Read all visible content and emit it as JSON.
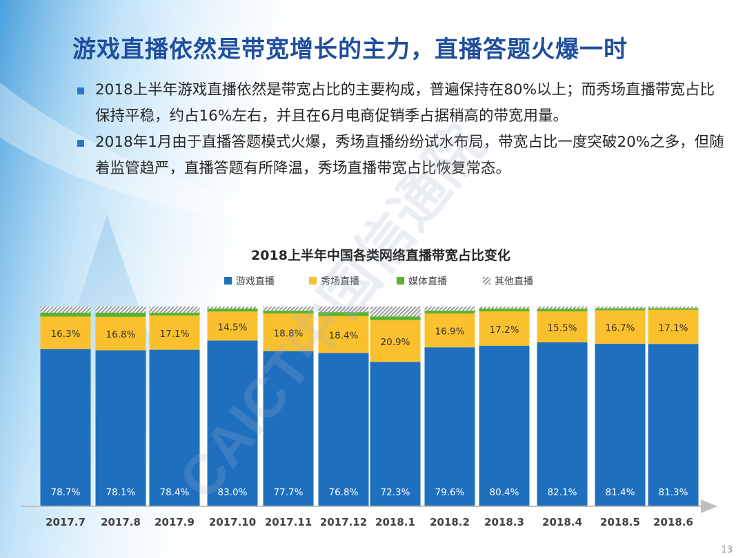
{
  "slide": {
    "title": "游戏直播依然是带宽增长的主力，直播答题火爆一时",
    "bullets": [
      "2018上半年游戏直播依然是带宽占比的主要构成，普遍保持在80%以上；而秀场直播带宽占比保持平稳，约占16%左右，并且在6月电商促销季占据稍高的带宽用量。",
      "2018年1月由于直播答题模式火爆，秀场直播纷纷试水布局，带宽占比一度突破20%之多，但随着监管趋严，直播答题有所降温，秀场直播带宽占比恢复常态。"
    ],
    "page_number": "13",
    "watermark_text": "CAICT中国信通院",
    "colors": {
      "title": "#1f4e9e",
      "bullet_marker": "#2e74c8"
    }
  },
  "chart_data": {
    "type": "bar",
    "stacked": true,
    "title": "2018上半年中国各类网络直播带宽占比变化",
    "categories": [
      "2017.7",
      "2017.8",
      "2017.9",
      "2017.10",
      "2017.11",
      "2017.12",
      "2018.1",
      "2018.2",
      "2018.3",
      "2018.4",
      "2018.5",
      "2018.6"
    ],
    "series": [
      {
        "name": "游戏直播",
        "color": "#1f6fbf",
        "values": [
          78.7,
          78.1,
          78.4,
          83.0,
          77.7,
          76.8,
          72.3,
          79.6,
          80.4,
          82.1,
          81.4,
          81.3
        ],
        "labels": [
          "78.7%",
          "78.1%",
          "78.4%",
          "83.0%",
          "77.7%",
          "76.8%",
          "72.3%",
          "79.6%",
          "80.4%",
          "82.1%",
          "81.4%",
          "81.3%"
        ]
      },
      {
        "name": "秀场直播",
        "color": "#fbc02d",
        "values": [
          16.3,
          16.8,
          17.1,
          14.5,
          18.8,
          18.4,
          20.9,
          16.9,
          17.2,
          15.5,
          16.7,
          17.1
        ],
        "labels": [
          "16.3%",
          "16.8%",
          "17.1%",
          "14.5%",
          "18.8%",
          "18.4%",
          "20.9%",
          "16.9%",
          "17.2%",
          "15.5%",
          "16.7%",
          "17.1%"
        ]
      },
      {
        "name": "媒体直播",
        "color": "#5bb22e",
        "values": [
          2.0,
          2.1,
          1.5,
          1.5,
          1.5,
          2.0,
          1.8,
          1.5,
          1.4,
          1.3,
          1.0,
          0.8
        ]
      },
      {
        "name": "其他直播",
        "color": "#a6a6a6",
        "pattern": "hatch",
        "values": [
          3.0,
          3.0,
          3.0,
          1.0,
          2.0,
          2.8,
          5.0,
          2.0,
          1.0,
          1.1,
          0.9,
          0.8
        ]
      }
    ],
    "ylim": [
      0,
      100
    ],
    "legend_position": "top",
    "grid": false
  }
}
